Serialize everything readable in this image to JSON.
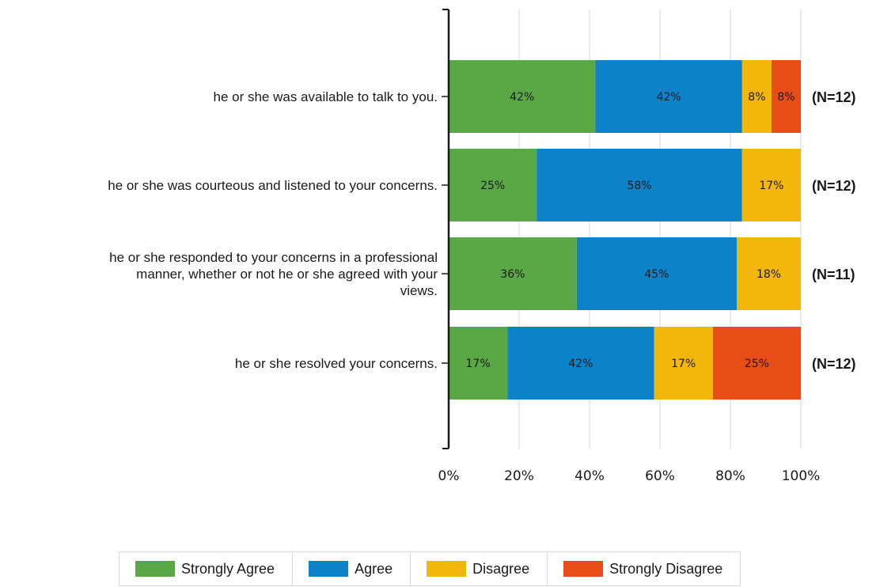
{
  "chart_data": {
    "type": "bar",
    "orientation": "horizontal",
    "stacked": "percent",
    "title": "",
    "xlabel": "",
    "ylabel": "",
    "xlim": [
      0,
      100
    ],
    "x_ticks": [
      "0%",
      "20%",
      "40%",
      "60%",
      "80%",
      "100%"
    ],
    "grid": true,
    "legend_position": "bottom",
    "categories": [
      [
        "he or she was available to talk to you."
      ],
      [
        "he or she was courteous and listened to your concerns."
      ],
      [
        "he or she responded to your concerns in a professional",
        "manner, whether or not he or she agreed with your",
        "views."
      ],
      [
        "he or she resolved your concerns."
      ]
    ],
    "sample_sizes": [
      "(N=12)",
      "(N=12)",
      "(N=11)",
      "(N=12)"
    ],
    "series": [
      {
        "name": "Strongly Agree",
        "color": "#5aa845",
        "values": [
          41.67,
          25.0,
          36.36,
          16.67
        ],
        "labels": [
          "42%",
          "25%",
          "36%",
          "17%"
        ]
      },
      {
        "name": "Agree",
        "color": "#0c82c9",
        "values": [
          41.67,
          58.33,
          45.45,
          41.67
        ],
        "labels": [
          "42%",
          "58%",
          "45%",
          "42%"
        ]
      },
      {
        "name": "Disagree",
        "color": "#f3b60b",
        "values": [
          8.33,
          16.67,
          18.18,
          16.67
        ],
        "labels": [
          "8%",
          "17%",
          "18%",
          "17%"
        ]
      },
      {
        "name": "Strongly Disagree",
        "color": "#e84c17",
        "values": [
          8.33,
          0,
          0,
          25.0
        ],
        "labels": [
          "8%",
          "",
          "",
          "25%"
        ]
      }
    ]
  }
}
